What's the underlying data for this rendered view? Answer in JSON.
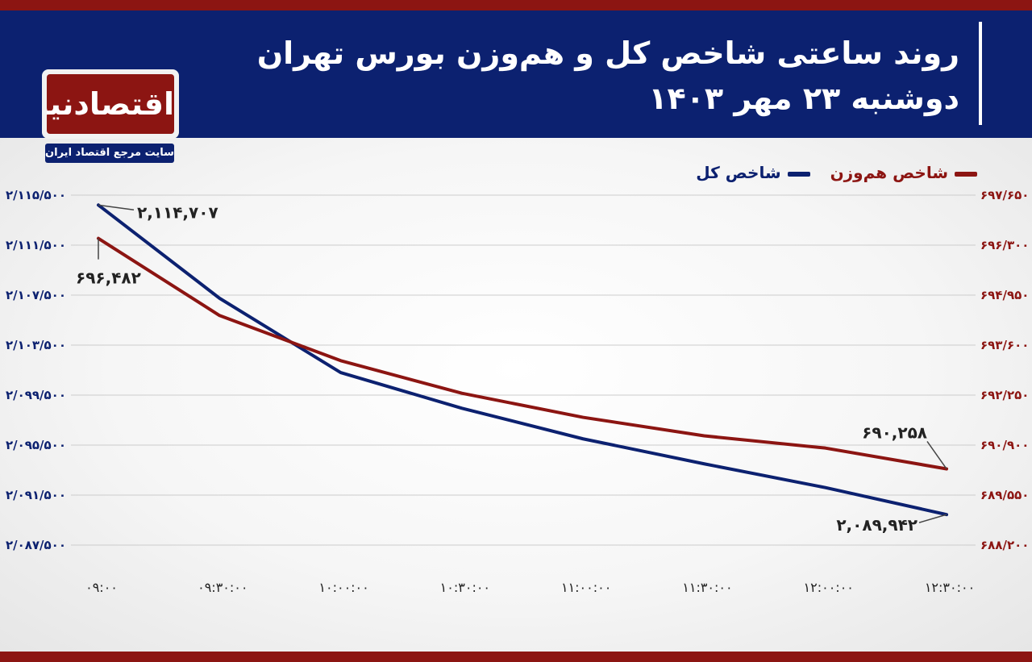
{
  "header": {
    "title": "روند ساعتی شاخص کل و هم‌وزن بورس تهران",
    "subtitle": "دوشنبه ۲۳ مهر ۱۴۰۳"
  },
  "logo": {
    "name": "اقتصادنیوز",
    "tagline": "سایت مرجع اقتصاد ایران"
  },
  "colors": {
    "navy": "#0c2170",
    "red": "#8c1512",
    "grid": "#cccccc"
  },
  "chart_data": {
    "type": "line",
    "x": [
      "۰۹:۰۰",
      "۰۹:۳۰:۰۰",
      "۱۰:۰۰:۰۰",
      "۱۰:۳۰:۰۰",
      "۱۱:۰۰:۰۰",
      "۱۱:۳۰:۰۰",
      "۱۲:۰۰:۰۰",
      "۱۲:۳۰:۰۰"
    ],
    "series": [
      {
        "name": "شاخص کل",
        "axis": "left",
        "color": "#0c2170",
        "values": [
          2114707,
          2107250,
          2101300,
          2098450,
          2096000,
          2094000,
          2092100,
          2089942
        ]
      },
      {
        "name": "شاخص هم‌وزن",
        "axis": "right",
        "color": "#8c1512",
        "values": [
          696482,
          694400,
          693180,
          692300,
          691650,
          691150,
          690820,
          690258
        ]
      }
    ],
    "y_left": {
      "range": [
        2087500,
        2115500
      ],
      "ticks": [
        2115500,
        2111500,
        2107500,
        2103500,
        2099500,
        2095500,
        2091500,
        2087500
      ],
      "tick_labels": [
        "۲/۱۱۵/۵۰۰",
        "۲/۱۱۱/۵۰۰",
        "۲/۱۰۷/۵۰۰",
        "۲/۱۰۳/۵۰۰",
        "۲/۰۹۹/۵۰۰",
        "۲/۰۹۵/۵۰۰",
        "۲/۰۹۱/۵۰۰",
        "۲/۰۸۷/۵۰۰"
      ]
    },
    "y_right": {
      "range": [
        688200,
        697650
      ],
      "ticks": [
        697650,
        696300,
        694950,
        693600,
        692250,
        690900,
        689550,
        688200
      ],
      "tick_labels": [
        "۶۹۷/۶۵۰",
        "۶۹۶/۳۰۰",
        "۶۹۴/۹۵۰",
        "۶۹۳/۶۰۰",
        "۶۹۲/۲۵۰",
        "۶۹۰/۹۰۰",
        "۶۸۹/۵۵۰",
        "۶۸۸/۲۰۰"
      ]
    },
    "annotations": [
      {
        "series": 0,
        "point": 0,
        "text": "۲,۱۱۴,۷۰۷"
      },
      {
        "series": 1,
        "point": 0,
        "text": "۶۹۶,۴۸۲"
      },
      {
        "series": 1,
        "point": 7,
        "text": "۶۹۰,۲۵۸"
      },
      {
        "series": 0,
        "point": 7,
        "text": "۲,۰۸۹,۹۴۲"
      }
    ],
    "grid": true,
    "legend_position": "top-right"
  }
}
